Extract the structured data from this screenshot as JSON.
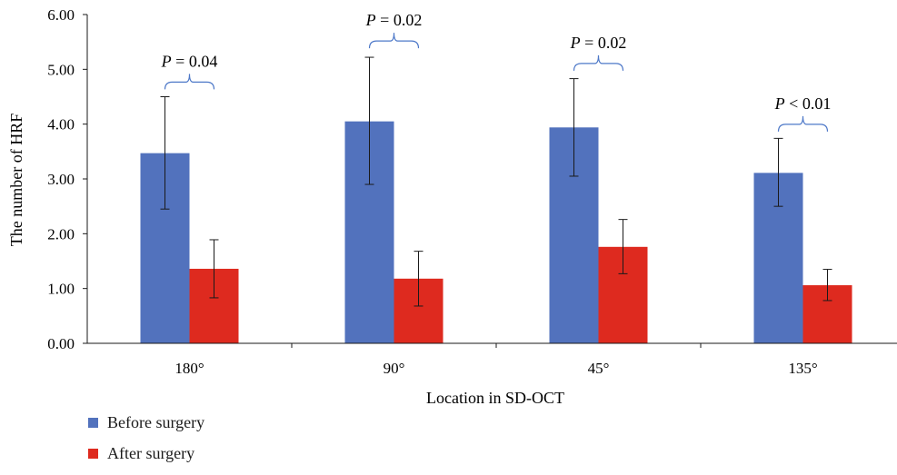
{
  "chart_data": {
    "type": "bar",
    "title": "",
    "xlabel": "Location in SD-OCT",
    "ylabel": "The number of HRF",
    "ylim": [
      0,
      6
    ],
    "yticks": [
      "0.00",
      "1.00",
      "2.00",
      "3.00",
      "4.00",
      "5.00",
      "6.00"
    ],
    "categories": [
      "180°",
      "90°",
      "45°",
      "135°"
    ],
    "series": [
      {
        "name": "Before surgery",
        "color": "#5272bd",
        "values": [
          3.47,
          4.05,
          3.94,
          3.11
        ],
        "error_low": [
          2.45,
          2.9,
          3.05,
          2.5
        ],
        "error_high": [
          4.5,
          5.22,
          4.83,
          3.74
        ]
      },
      {
        "name": "After surgery",
        "color": "#de2a1f",
        "values": [
          1.36,
          1.18,
          1.76,
          1.06
        ],
        "error_low": [
          0.83,
          0.68,
          1.27,
          0.78
        ],
        "error_high": [
          1.89,
          1.68,
          2.26,
          1.35
        ]
      }
    ],
    "annotations": [
      {
        "category": "180°",
        "text": "P = 0.04",
        "bracket_level": 4.8
      },
      {
        "category": "90°",
        "text": "P = 0.02",
        "bracket_level": 5.55
      },
      {
        "category": "45°",
        "text": "P = 0.02",
        "bracket_level": 5.14
      },
      {
        "category": "135°",
        "text": "P < 0.01",
        "bracket_level": 4.03
      }
    ],
    "legend_position": "bottom-left",
    "grid": false,
    "bracket_color": "#4d78c8"
  }
}
